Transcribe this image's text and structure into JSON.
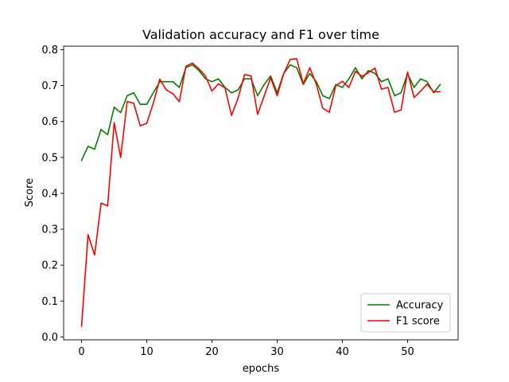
{
  "chart_data": {
    "type": "line",
    "title": "Validation accuracy and F1 over time",
    "xlabel": "epochs",
    "ylabel": "Score",
    "xlim": [
      -2.75,
      57.75
    ],
    "ylim": [
      -0.008,
      0.81
    ],
    "xticks": [
      0,
      10,
      20,
      30,
      40,
      50
    ],
    "yticks": [
      0.0,
      0.1,
      0.2,
      0.3,
      0.4,
      0.5,
      0.6,
      0.7,
      0.8
    ],
    "ytick_labels": [
      "0.0",
      "0.1",
      "0.2",
      "0.3",
      "0.4",
      "0.5",
      "0.6",
      "0.7",
      "0.8"
    ],
    "legend_position": "lower-right",
    "grid": false,
    "x": [
      0,
      1,
      2,
      3,
      4,
      5,
      6,
      7,
      8,
      9,
      10,
      11,
      12,
      13,
      14,
      15,
      16,
      17,
      18,
      19,
      20,
      21,
      22,
      23,
      24,
      25,
      26,
      27,
      28,
      29,
      30,
      31,
      32,
      33,
      34,
      35,
      36,
      37,
      38,
      39,
      40,
      41,
      42,
      43,
      44,
      45,
      46,
      47,
      48,
      49,
      50,
      51,
      52,
      53,
      54,
      55
    ],
    "series": [
      {
        "name": "Accuracy",
        "color": "#008000",
        "values": [
          0.492,
          0.531,
          0.523,
          0.578,
          0.563,
          0.64,
          0.625,
          0.672,
          0.68,
          0.648,
          0.648,
          0.68,
          0.711,
          0.711,
          0.711,
          0.695,
          0.75,
          0.758,
          0.742,
          0.719,
          0.711,
          0.719,
          0.695,
          0.68,
          0.688,
          0.719,
          0.719,
          0.672,
          0.703,
          0.727,
          0.68,
          0.734,
          0.758,
          0.75,
          0.703,
          0.734,
          0.711,
          0.672,
          0.664,
          0.703,
          0.695,
          0.719,
          0.75,
          0.719,
          0.742,
          0.734,
          0.711,
          0.719,
          0.672,
          0.68,
          0.734,
          0.695,
          0.719,
          0.711,
          0.68,
          0.703
        ]
      },
      {
        "name": "F1 score",
        "color": "#ff0000",
        "values": [
          0.03,
          0.285,
          0.228,
          0.373,
          0.365,
          0.597,
          0.5,
          0.656,
          0.651,
          0.588,
          0.595,
          0.651,
          0.718,
          0.688,
          0.678,
          0.655,
          0.754,
          0.763,
          0.747,
          0.727,
          0.685,
          0.705,
          0.694,
          0.617,
          0.665,
          0.731,
          0.727,
          0.62,
          0.671,
          0.722,
          0.672,
          0.733,
          0.773,
          0.775,
          0.705,
          0.75,
          0.704,
          0.637,
          0.626,
          0.7,
          0.712,
          0.695,
          0.74,
          0.726,
          0.736,
          0.749,
          0.69,
          0.695,
          0.626,
          0.632,
          0.738,
          0.667,
          0.685,
          0.704,
          0.683,
          0.683
        ]
      }
    ]
  }
}
